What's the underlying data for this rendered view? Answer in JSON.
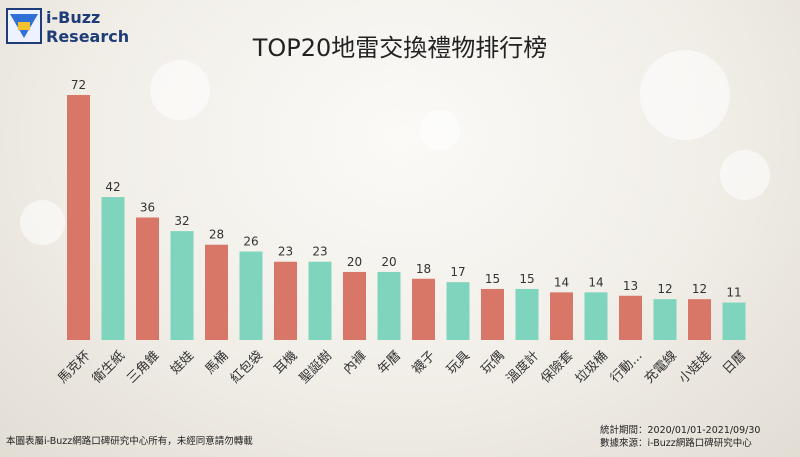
{
  "logo": {
    "line1": "i-Buzz",
    "line2": "Research"
  },
  "title": "TOP20地雷交換禮物排行榜",
  "footer": {
    "copyright": "本圖表屬i-Buzz網路口碑研究中心所有，未經同意請勿轉載",
    "period": "統計期間：2020/01/01-2021/09/30",
    "source": "數據來源：i-Buzz網路口碑研究中心"
  },
  "colors": {
    "red": "#d87668",
    "teal": "#7fd4bd"
  },
  "chart_data": {
    "type": "bar",
    "title": "TOP20地雷交換禮物排行榜",
    "categories": [
      "馬克杯",
      "衛生紙",
      "三角錐",
      "娃娃",
      "馬桶",
      "紅包袋",
      "耳機",
      "聖誕樹",
      "內褲",
      "年曆",
      "襪子",
      "玩具",
      "玩偶",
      "溫度計",
      "保險套",
      "垃圾桶",
      "行動...",
      "充電線",
      "小娃娃",
      "日曆"
    ],
    "values": [
      72,
      42,
      36,
      32,
      28,
      26,
      23,
      23,
      20,
      20,
      18,
      17,
      15,
      15,
      14,
      14,
      13,
      12,
      12,
      11
    ],
    "bar_colors": [
      "red",
      "teal",
      "red",
      "teal",
      "red",
      "teal",
      "red",
      "teal",
      "red",
      "teal",
      "red",
      "teal",
      "red",
      "teal",
      "red",
      "teal",
      "red",
      "teal",
      "red",
      "teal"
    ],
    "xlabel": "",
    "ylabel": "",
    "ylim": [
      0,
      80
    ],
    "grid": false,
    "legend": "none",
    "data_labels": true
  }
}
